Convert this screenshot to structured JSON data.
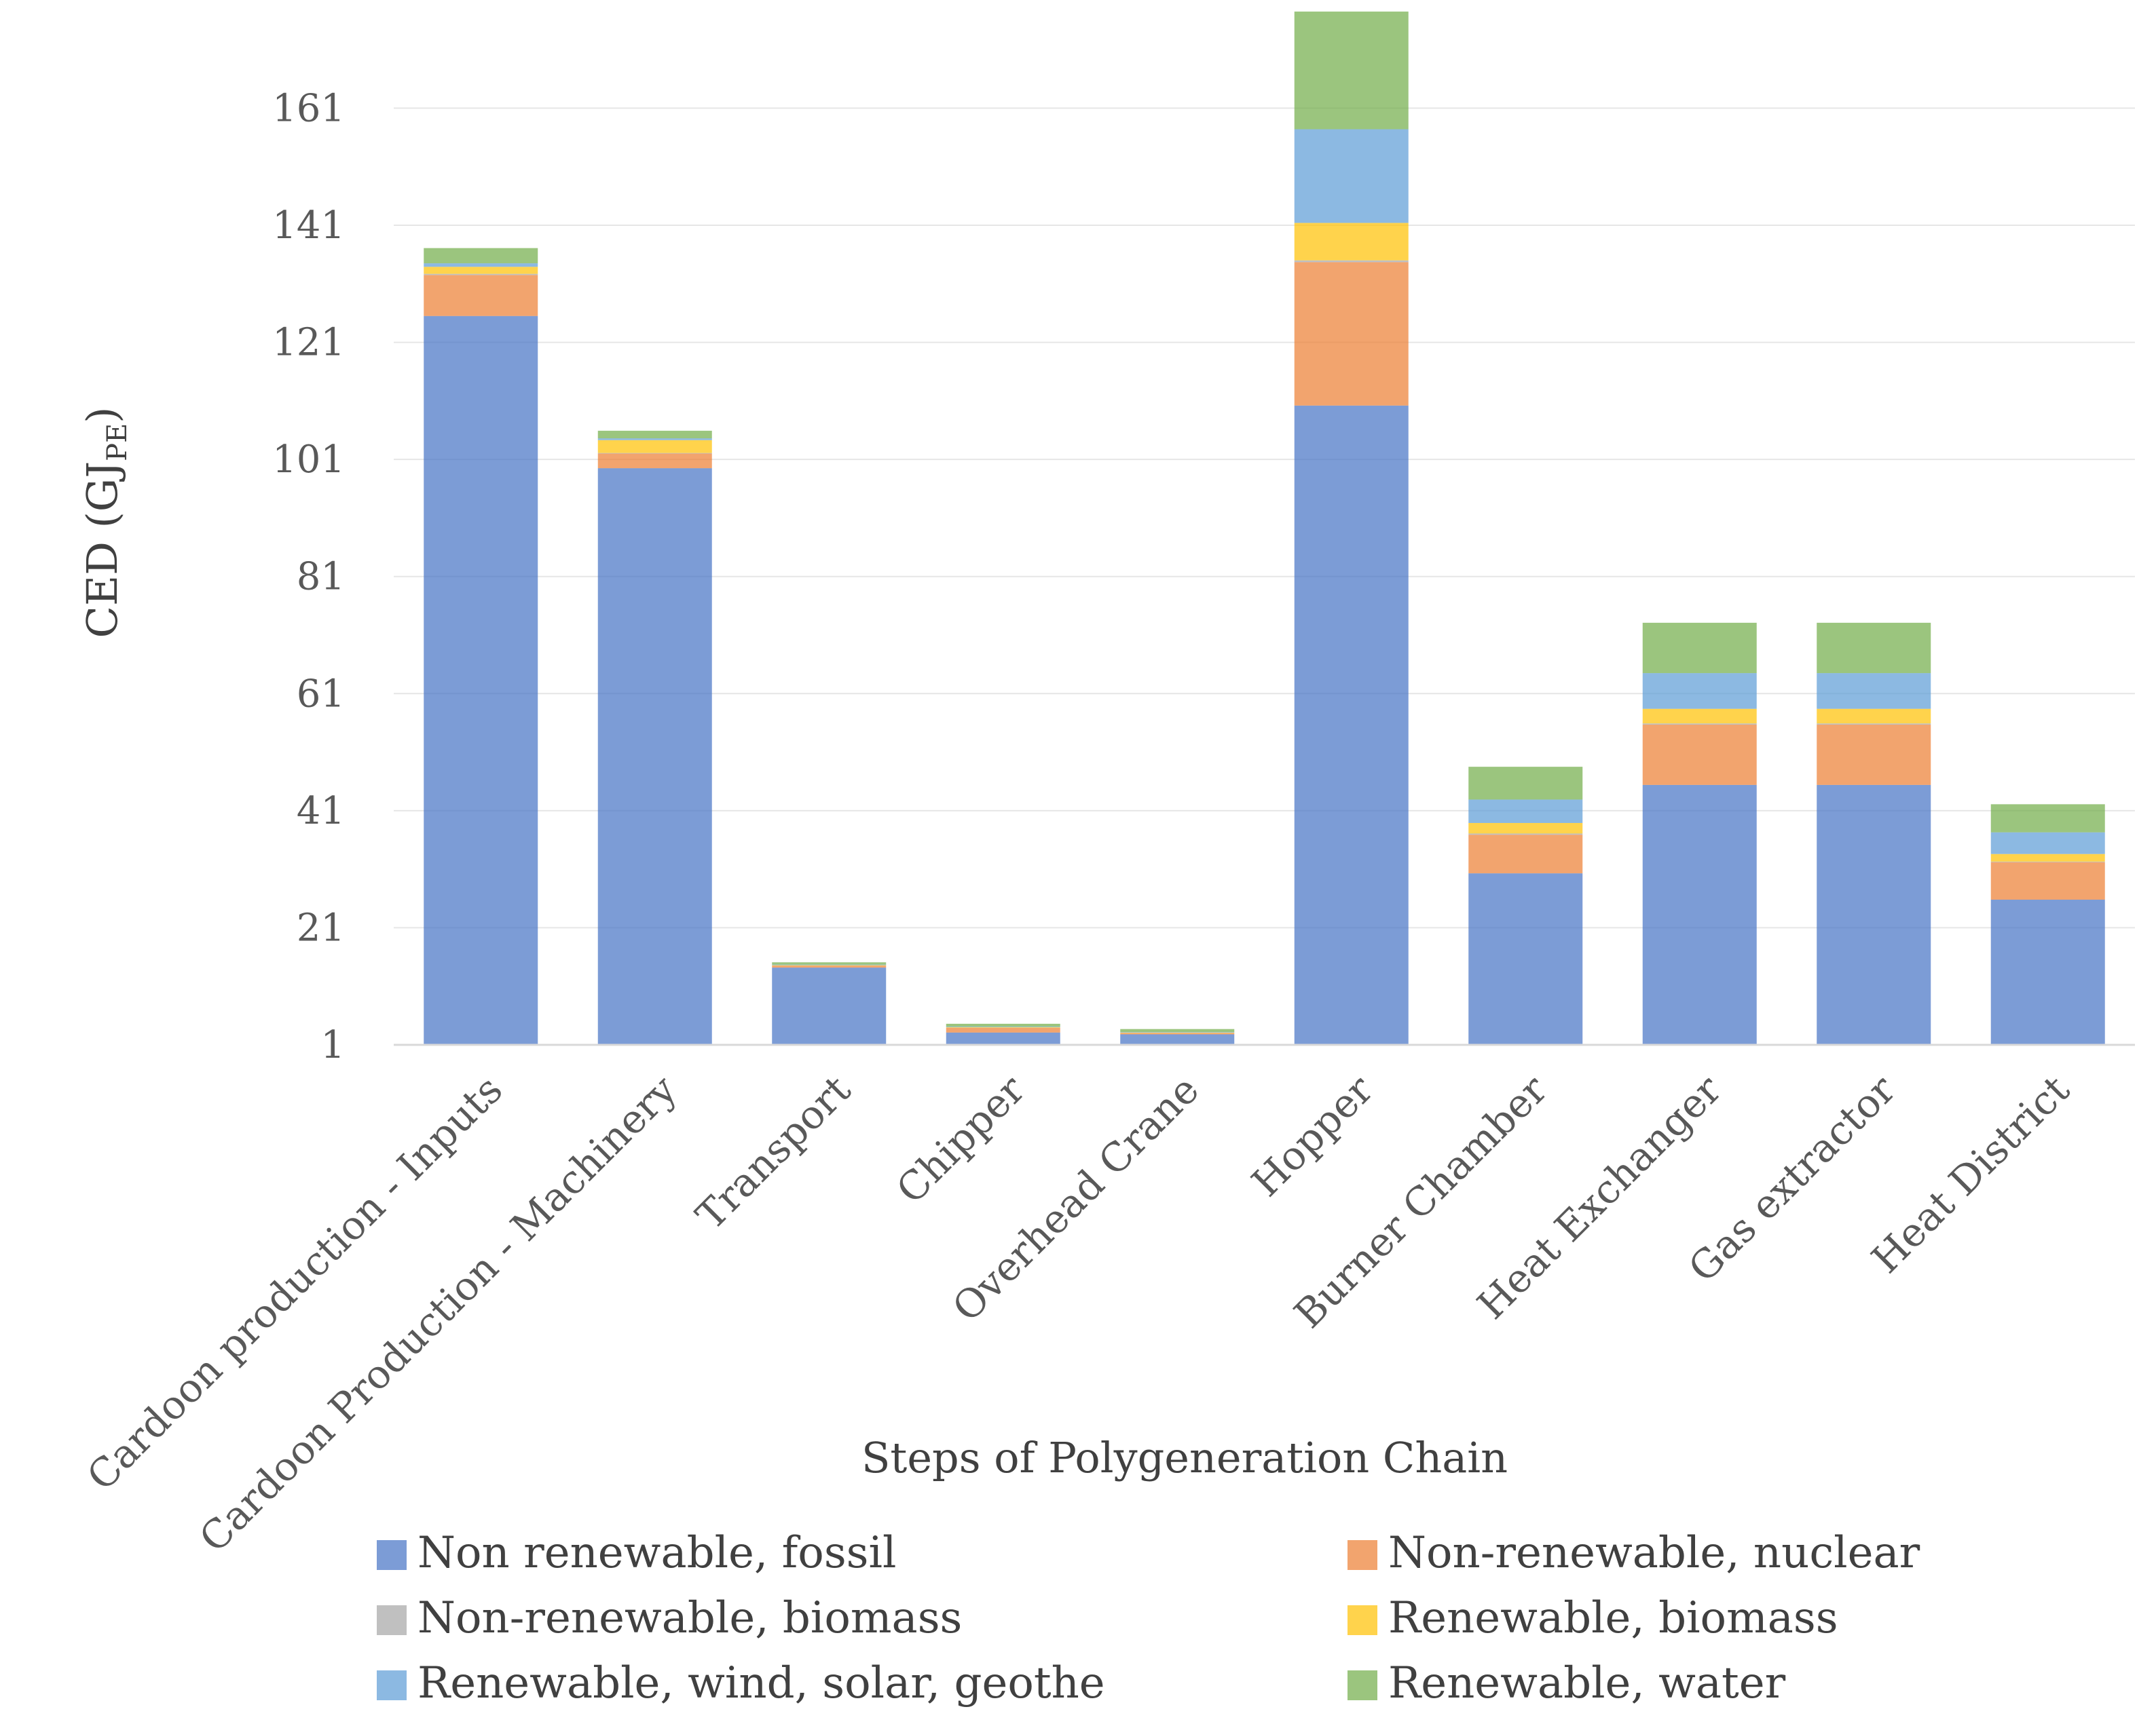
{
  "chart_data": {
    "type": "bar",
    "stacked": true,
    "ylabel": "CED (GJPE)",
    "ylabel_main": "CED (GJ",
    "ylabel_sub": "PE",
    "ylabel_close": ")",
    "xlabel": "Steps of Polygeneration Chain",
    "ylim": [
      1,
      176
    ],
    "yticks": [
      1,
      21,
      41,
      61,
      81,
      101,
      121,
      141,
      161
    ],
    "grid": true,
    "legend_position": "bottom",
    "categories": [
      "Cardoon production - Inputs",
      "Cardoon Production - Machinery",
      "Transport",
      "Chipper",
      "Overhead Crane",
      "Hopper",
      "Burner Chamber",
      "Heat Exchanger",
      "Gas extractor",
      "Heat District"
    ],
    "series": [
      {
        "name": "Non renewable, fossil",
        "color": "#4472C4",
        "values": [
          124.5,
          98.5,
          13.2,
          2.1,
          1.8,
          109.2,
          29.3,
          44.4,
          44.4,
          24.8
        ]
      },
      {
        "name": "Non-renewable, nuclear",
        "color": "#ED7D31",
        "values": [
          7.0,
          2.5,
          0.3,
          0.8,
          0.2,
          24.5,
          6.6,
          10.3,
          10.3,
          6.4
        ]
      },
      {
        "name": "Non-renewable, biomass",
        "color": "#A5A5A5",
        "values": [
          0.2,
          0.1,
          0.0,
          0.0,
          0.0,
          0.3,
          0.2,
          0.2,
          0.2,
          0.1
        ]
      },
      {
        "name": "Renewable, biomass",
        "color": "#FFC000",
        "values": [
          1.2,
          2.2,
          0.1,
          0.1,
          0.1,
          6.4,
          1.8,
          2.5,
          2.5,
          1.3
        ]
      },
      {
        "name": "Renewable, wind, solar, geothe",
        "color": "#5B9BD5",
        "values": [
          0.6,
          0.3,
          0.1,
          0.1,
          0.1,
          16.0,
          4.0,
          6.1,
          6.1,
          3.7
        ]
      },
      {
        "name": "Renewable, water",
        "color": "#70AD47",
        "values": [
          2.6,
          1.3,
          0.4,
          0.5,
          0.5,
          20.1,
          5.6,
          8.6,
          8.6,
          4.8
        ]
      }
    ]
  }
}
